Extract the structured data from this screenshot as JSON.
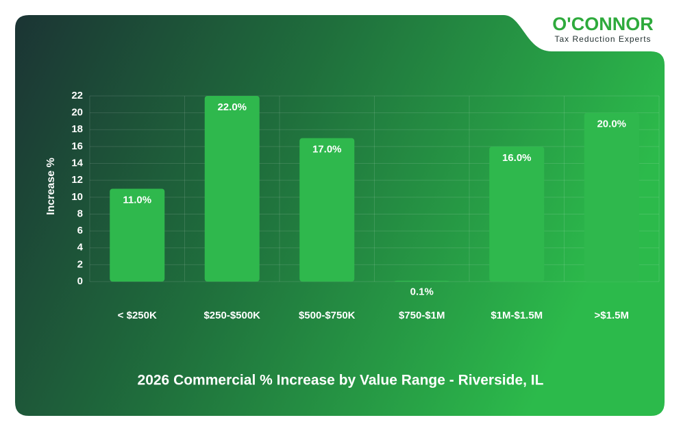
{
  "logo": {
    "name": "O'CONNOR",
    "tagline": "Tax Reduction Experts"
  },
  "chart_data": {
    "type": "bar",
    "title": "2026 Commercial % Increase by Value Range - Riverside, IL",
    "y_label": "Increase %",
    "categories": [
      "< $250K",
      "$250-$500K",
      "$500-$750K",
      "$750-$1M",
      "$1M-$1.5M",
      ">$1.5M"
    ],
    "values": [
      11.0,
      22.0,
      17.0,
      0.1,
      16.0,
      20.0
    ],
    "value_labels": [
      "11.0%",
      "22.0%",
      "17.0%",
      "0.1%",
      "16.0%",
      "20.0%"
    ],
    "color": "#2fb84d",
    "ylim": [
      0,
      22
    ],
    "yticks": [
      0,
      2,
      4,
      6,
      8,
      10,
      12,
      14,
      16,
      18,
      20,
      22
    ],
    "grid": true
  }
}
